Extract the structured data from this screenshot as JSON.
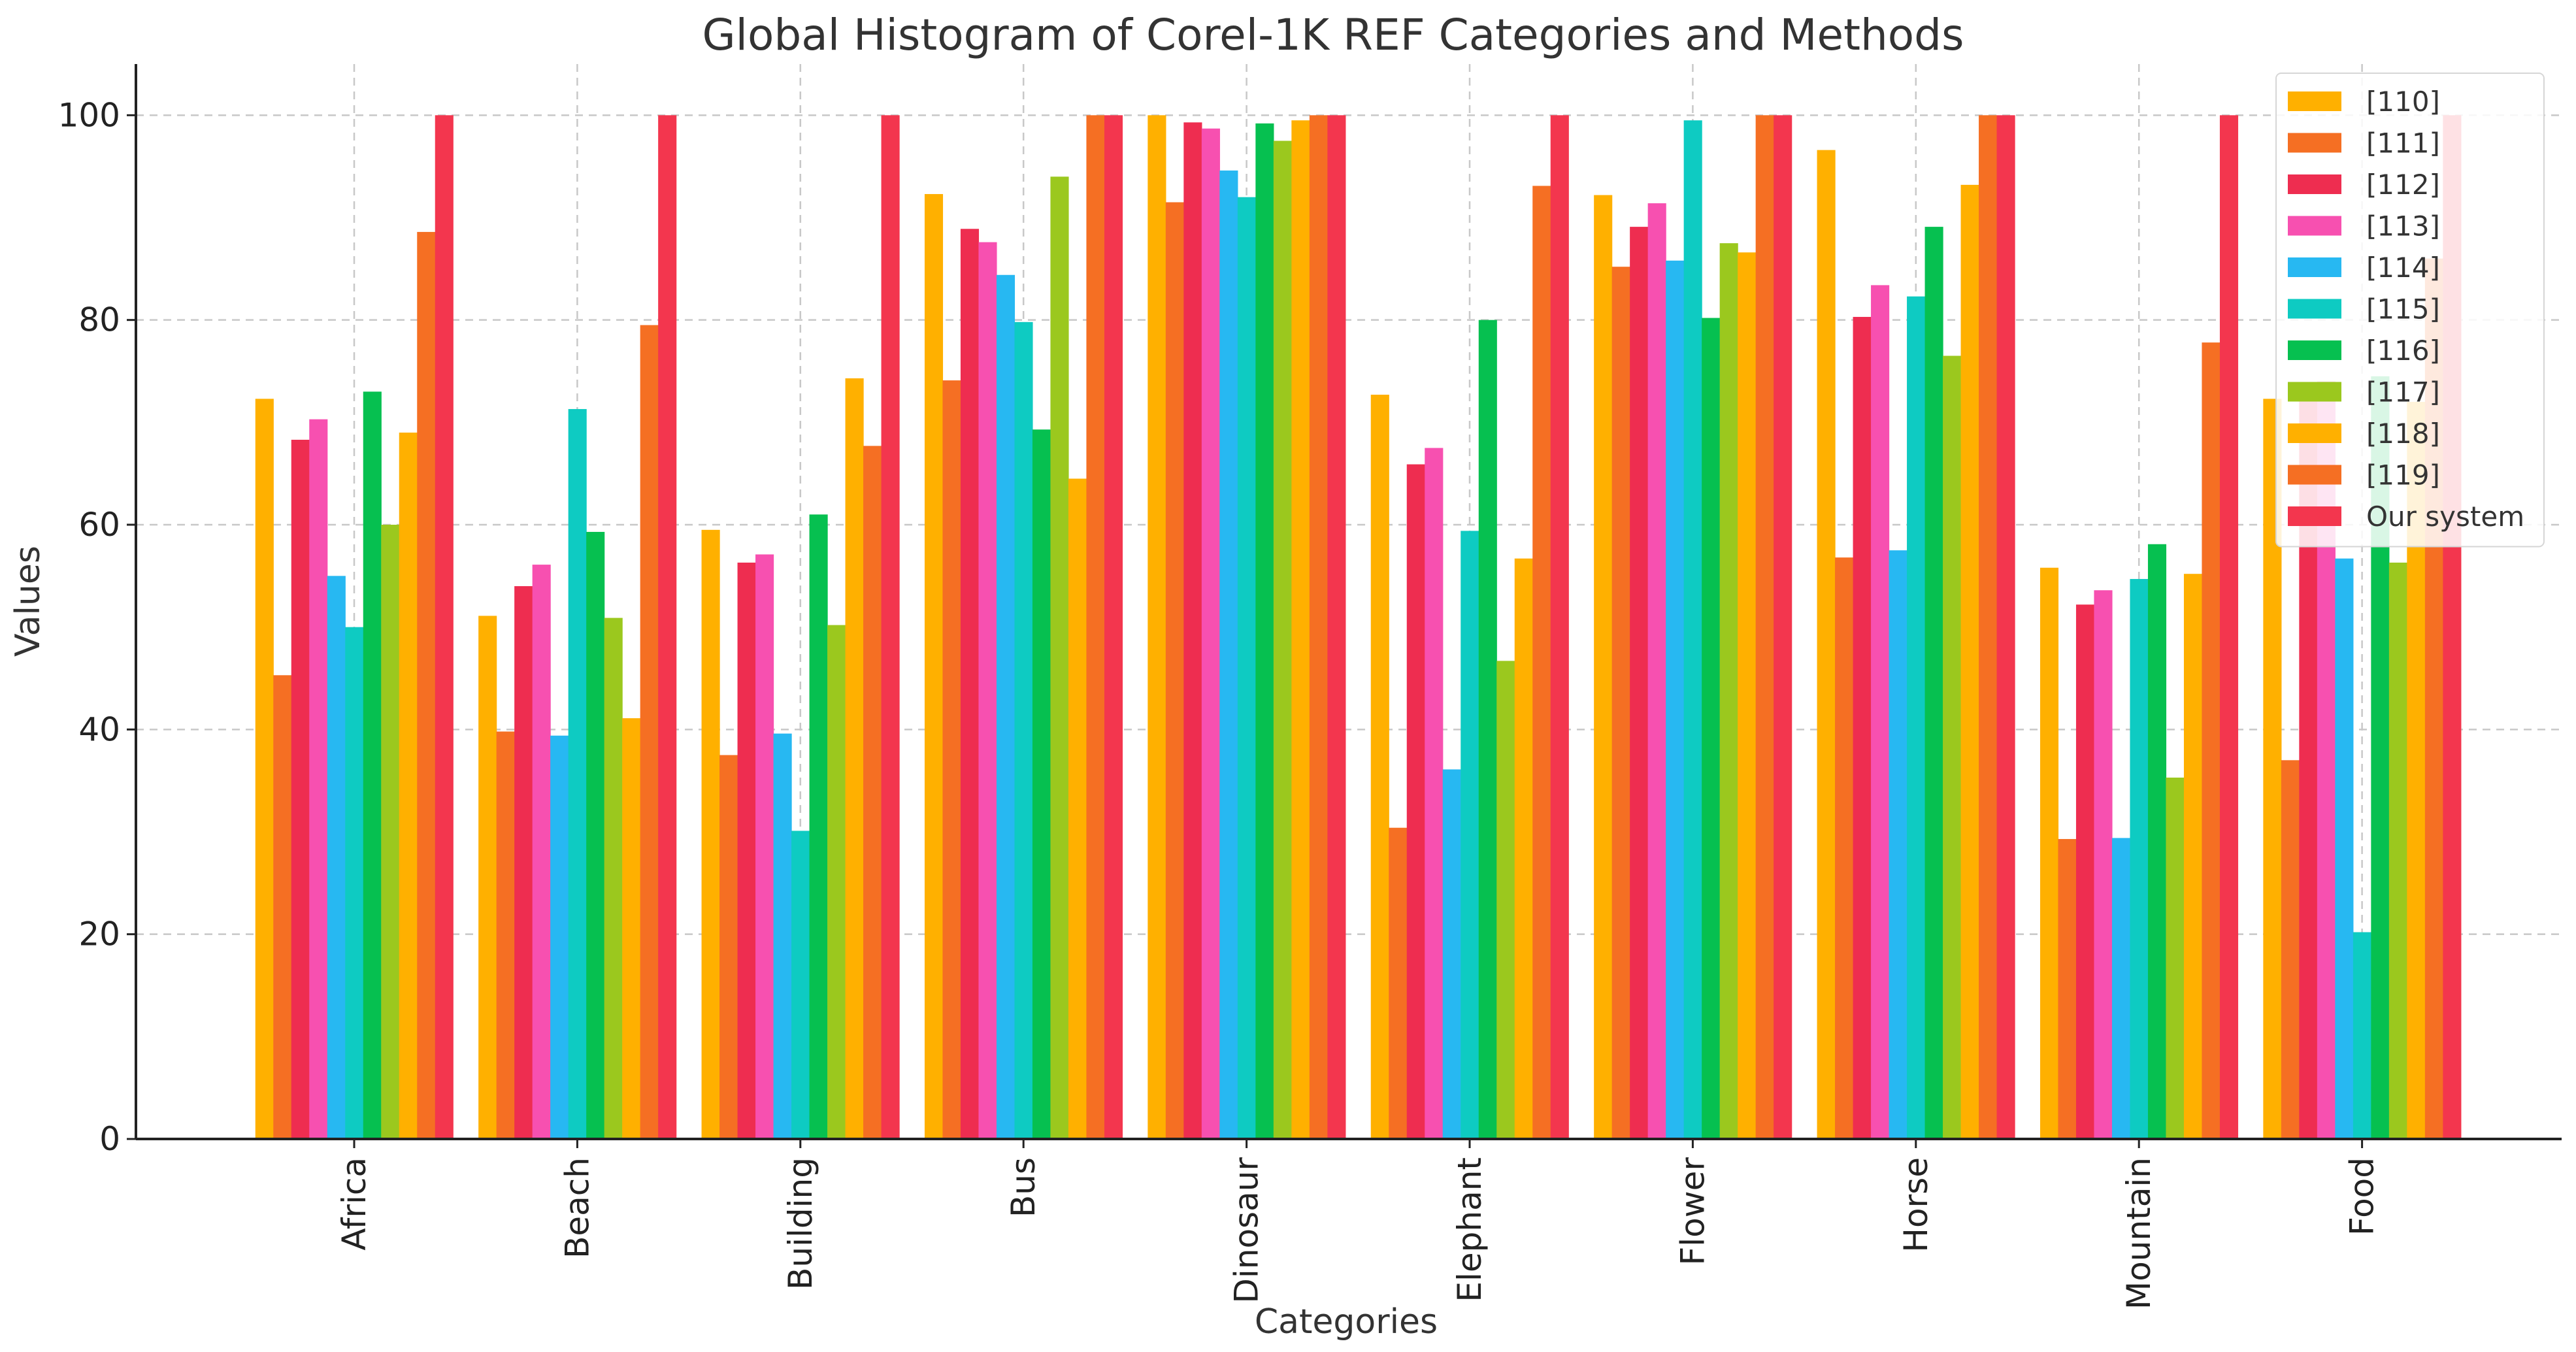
{
  "chart_data": {
    "type": "bar",
    "title": "Global Histogram of Corel-1K REF Categories and Methods",
    "xlabel": "Categories",
    "ylabel": "Values",
    "ylim": [
      0,
      105
    ],
    "yticks": [
      0,
      20,
      40,
      60,
      80,
      100
    ],
    "grid": true,
    "legend_position": "top-right",
    "categories": [
      "Africa",
      "Beach",
      "Building",
      "Bus",
      "Dinosaur",
      "Elephant",
      "Flower",
      "Horse",
      "Mountain",
      "Food"
    ],
    "series": [
      {
        "name": "[110]",
        "color": "#FFB000",
        "values": [
          72.3,
          51.1,
          59.5,
          92.3,
          100,
          72.7,
          92.2,
          96.6,
          55.8,
          72.3
        ]
      },
      {
        "name": "[111]",
        "color": "#F56F23",
        "values": [
          45.3,
          39.8,
          37.5,
          74.1,
          91.5,
          30.4,
          85.2,
          56.8,
          29.3,
          37.0
        ]
      },
      {
        "name": "[112]",
        "color": "#EE2D50",
        "values": [
          68.3,
          54.0,
          56.3,
          88.9,
          99.3,
          65.9,
          89.1,
          80.3,
          52.2,
          72.5
        ]
      },
      {
        "name": "[113]",
        "color": "#F750B0",
        "values": [
          70.3,
          56.1,
          57.1,
          87.6,
          98.7,
          67.5,
          91.4,
          83.4,
          53.6,
          74.0
        ]
      },
      {
        "name": "[114]",
        "color": "#27B8F2",
        "values": [
          55.0,
          39.4,
          39.6,
          84.4,
          94.6,
          36.1,
          85.8,
          57.5,
          29.4,
          56.7
        ]
      },
      {
        "name": "[115]",
        "color": "#0ECBC2",
        "values": [
          50.0,
          71.3,
          30.1,
          79.8,
          92.0,
          59.4,
          99.5,
          82.3,
          54.7,
          20.2
        ]
      },
      {
        "name": "[116]",
        "color": "#06C050",
        "values": [
          73.0,
          59.3,
          61.0,
          69.3,
          99.2,
          80.0,
          80.2,
          89.1,
          58.1,
          74.5
        ]
      },
      {
        "name": "[117]",
        "color": "#9BC81E",
        "values": [
          60.0,
          50.9,
          50.2,
          94.0,
          97.5,
          46.7,
          87.5,
          76.5,
          35.3,
          56.3
        ]
      },
      {
        "name": "[118]",
        "color": "#FFB000",
        "values": [
          69.0,
          41.1,
          74.3,
          64.5,
          99.5,
          56.7,
          86.6,
          93.2,
          55.2,
          72.0
        ]
      },
      {
        "name": "[119]",
        "color": "#F56F23",
        "values": [
          88.6,
          79.5,
          67.7,
          100,
          100,
          93.1,
          100,
          100,
          77.8,
          86.0
        ]
      },
      {
        "name": "Our system",
        "color": "#F3364E",
        "values": [
          100,
          100,
          100,
          100,
          100,
          100,
          100,
          100,
          100,
          100
        ]
      }
    ]
  }
}
